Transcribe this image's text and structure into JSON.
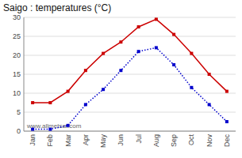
{
  "chart_data": {
    "type": "line",
    "title": "Saigo : temperatures (°C)",
    "categories": [
      "Jan",
      "Feb",
      "Mar",
      "Apr",
      "May",
      "Jun",
      "Jul",
      "Aug",
      "Sep",
      "Oct",
      "Nov",
      "Dec"
    ],
    "series": [
      {
        "color": "#cc0000",
        "marker": "square",
        "line_style": "solid",
        "values": [
          7.5,
          7.5,
          10.5,
          16.0,
          20.5,
          23.5,
          27.5,
          29.5,
          25.5,
          20.5,
          15.0,
          10.5
        ]
      },
      {
        "color": "#0000cc",
        "marker": "square",
        "line_style": "dotted",
        "values": [
          0.5,
          0.5,
          1.5,
          7.0,
          11.0,
          16.0,
          21.0,
          22.0,
          17.5,
          11.5,
          7.0,
          2.5
        ]
      }
    ],
    "ylim": [
      0,
      30
    ],
    "yticks": [
      0,
      5,
      10,
      15,
      20,
      25,
      30
    ],
    "grid": true,
    "annotations": [
      "www.allmetsat.com"
    ]
  }
}
